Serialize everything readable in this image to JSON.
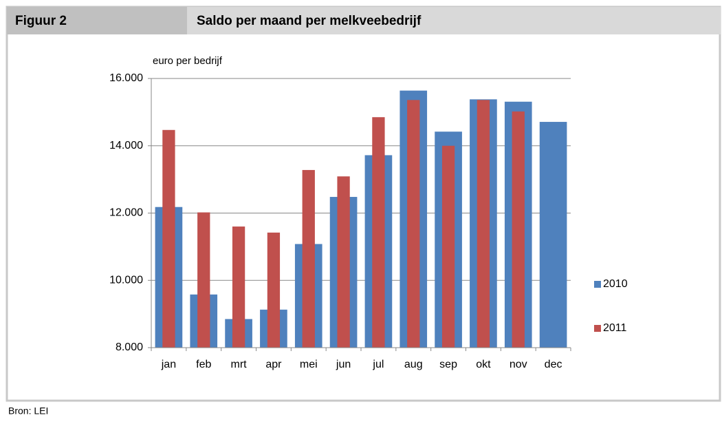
{
  "header": {
    "label": "Figuur 2",
    "title": "Saldo per maand per melkveebedrijf"
  },
  "source": "Bron: LEI",
  "chart_data": {
    "type": "bar",
    "y_label": "euro per bedrijf",
    "categories": [
      "jan",
      "feb",
      "mrt",
      "apr",
      "mei",
      "jun",
      "jul",
      "aug",
      "sep",
      "okt",
      "nov",
      "dec"
    ],
    "series": [
      {
        "name": "2010",
        "color": "#4f81bd",
        "values": [
          12180,
          9580,
          8850,
          9130,
          11080,
          12480,
          13720,
          15640,
          14420,
          15380,
          15310,
          14710
        ]
      },
      {
        "name": "2011",
        "color": "#c0504d",
        "values": [
          14470,
          12020,
          11600,
          11420,
          13280,
          13090,
          14850,
          15360,
          14000,
          15360,
          15020,
          null
        ]
      }
    ],
    "ylim": [
      8000,
      16000
    ],
    "yticks": [
      {
        "value": 8000,
        "label": "8.000"
      },
      {
        "value": 10000,
        "label": "10.000"
      },
      {
        "value": 12000,
        "label": "12.000"
      },
      {
        "value": 14000,
        "label": "14.000"
      },
      {
        "value": 16000,
        "label": "16.000"
      }
    ],
    "grid": true,
    "legend": "right"
  }
}
